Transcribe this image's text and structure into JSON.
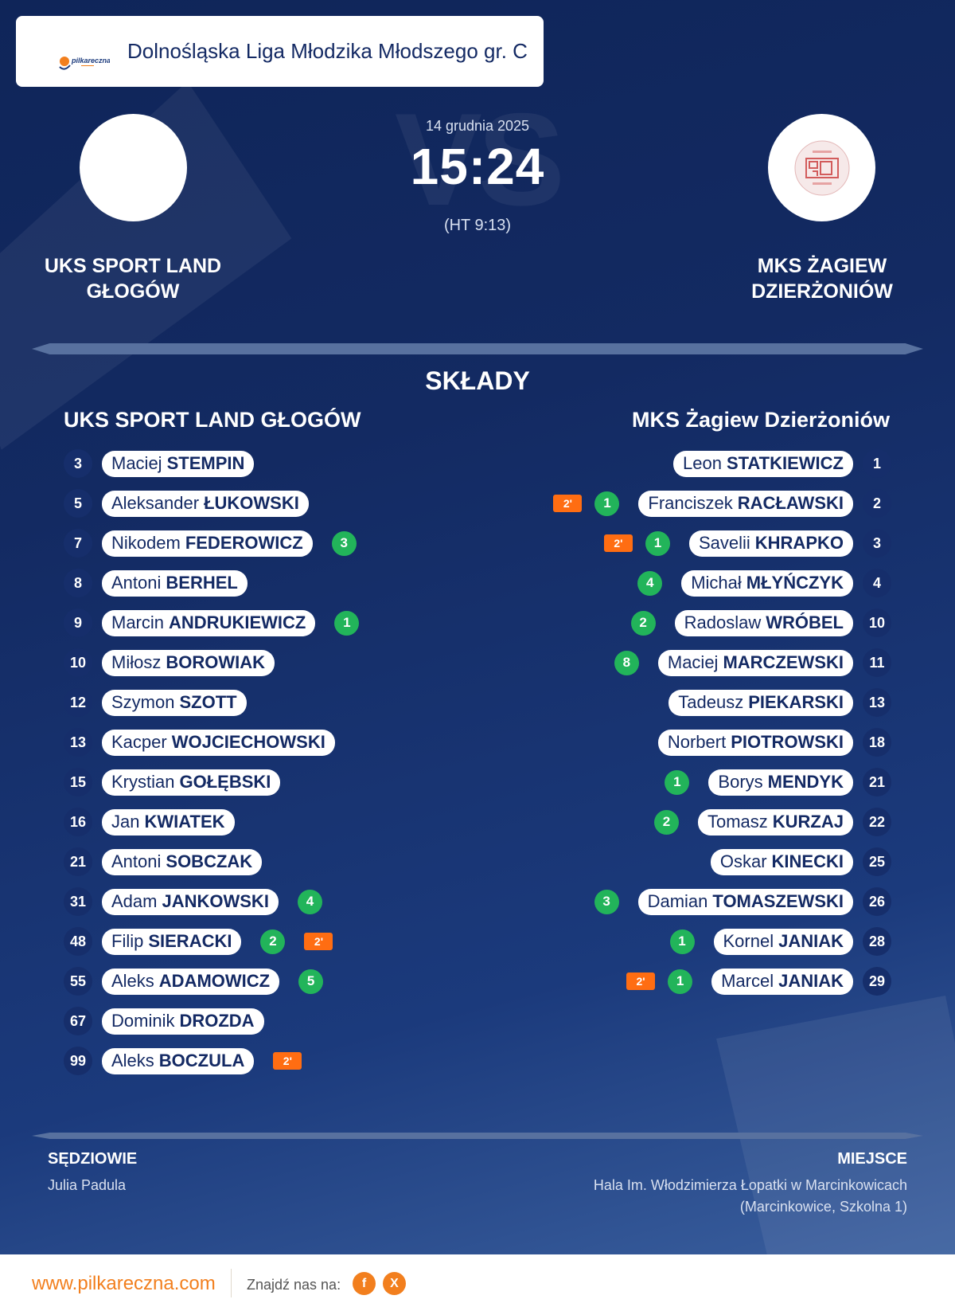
{
  "header": {
    "logo_text": "pilkareczna",
    "league": "Dolnośląska Liga Młodzika Młodszego gr. C"
  },
  "match": {
    "date": "14 grudnia 2025",
    "score": "15:24",
    "halftime": "(HT 9:13)",
    "vs_watermark": "VS",
    "home_team": "UKS SPORT LAND GŁOGÓW",
    "away_team": "MKS ŻAGIEW DZIERŻONIÓW"
  },
  "lineups": {
    "title": "SKŁADY",
    "home_title": "UKS SPORT LAND GŁOGÓW",
    "away_title": "MKS Żagiew Dzierżoniów",
    "home": [
      {
        "num": "3",
        "first": "Maciej",
        "last": "STEMPIN",
        "goals": "",
        "susp": ""
      },
      {
        "num": "5",
        "first": "Aleksander",
        "last": "ŁUKOWSKI",
        "goals": "",
        "susp": ""
      },
      {
        "num": "7",
        "first": "Nikodem",
        "last": "FEDEROWICZ",
        "goals": "3",
        "susp": ""
      },
      {
        "num": "8",
        "first": "Antoni",
        "last": "BERHEL",
        "goals": "",
        "susp": ""
      },
      {
        "num": "9",
        "first": "Marcin",
        "last": "ANDRUKIEWICZ",
        "goals": "1",
        "susp": ""
      },
      {
        "num": "10",
        "first": "Miłosz",
        "last": "BOROWIAK",
        "goals": "",
        "susp": ""
      },
      {
        "num": "12",
        "first": "Szymon",
        "last": "SZOTT",
        "goals": "",
        "susp": ""
      },
      {
        "num": "13",
        "first": "Kacper",
        "last": "WOJCIECHOWSKI",
        "goals": "",
        "susp": ""
      },
      {
        "num": "15",
        "first": "Krystian",
        "last": "GOŁĘBSKI",
        "goals": "",
        "susp": ""
      },
      {
        "num": "16",
        "first": "Jan",
        "last": "KWIATEK",
        "goals": "",
        "susp": ""
      },
      {
        "num": "21",
        "first": "Antoni",
        "last": "SOBCZAK",
        "goals": "",
        "susp": ""
      },
      {
        "num": "31",
        "first": "Adam",
        "last": "JANKOWSKI",
        "goals": "4",
        "susp": ""
      },
      {
        "num": "48",
        "first": "Filip",
        "last": "SIERACKI",
        "goals": "2",
        "susp": "2'"
      },
      {
        "num": "55",
        "first": "Aleks",
        "last": "ADAMOWICZ",
        "goals": "5",
        "susp": ""
      },
      {
        "num": "67",
        "first": "Dominik",
        "last": "DROZDA",
        "goals": "",
        "susp": ""
      },
      {
        "num": "99",
        "first": "Aleks",
        "last": "BOCZULA",
        "goals": "",
        "susp": "2'"
      }
    ],
    "away": [
      {
        "num": "1",
        "first": "Leon",
        "last": "STATKIEWICZ",
        "goals": "",
        "susp": ""
      },
      {
        "num": "2",
        "first": "Franciszek",
        "last": "RACŁAWSKI",
        "goals": "1",
        "susp": "2'"
      },
      {
        "num": "3",
        "first": "Savelii",
        "last": "KHRAPKO",
        "goals": "1",
        "susp": "2'"
      },
      {
        "num": "4",
        "first": "Michał",
        "last": "MŁYŃCZYK",
        "goals": "4",
        "susp": ""
      },
      {
        "num": "10",
        "first": "Radoslaw",
        "last": "WRÓBEL",
        "goals": "2",
        "susp": ""
      },
      {
        "num": "11",
        "first": "Maciej",
        "last": "MARCZEWSKI",
        "goals": "8",
        "susp": ""
      },
      {
        "num": "13",
        "first": "Tadeusz",
        "last": "PIEKARSKI",
        "goals": "",
        "susp": ""
      },
      {
        "num": "18",
        "first": "Norbert",
        "last": "PIOTROWSKI",
        "goals": "",
        "susp": ""
      },
      {
        "num": "21",
        "first": "Borys",
        "last": "MENDYK",
        "goals": "1",
        "susp": ""
      },
      {
        "num": "22",
        "first": "Tomasz",
        "last": "KURZAJ",
        "goals": "2",
        "susp": ""
      },
      {
        "num": "25",
        "first": "Oskar",
        "last": "KINECKI",
        "goals": "",
        "susp": ""
      },
      {
        "num": "26",
        "first": "Damian",
        "last": "TOMASZEWSKI",
        "goals": "3",
        "susp": ""
      },
      {
        "num": "28",
        "first": "Kornel",
        "last": "JANIAK",
        "goals": "1",
        "susp": ""
      },
      {
        "num": "29",
        "first": "Marcel",
        "last": "JANIAK",
        "goals": "1",
        "susp": "2'"
      }
    ]
  },
  "officials": {
    "label": "SĘDZIOWIE",
    "value": "Julia Padula"
  },
  "venue": {
    "label": "MIEJSCE",
    "line1": "Hala Im. Włodzimierza Łopatki w Marcinkowicach",
    "line2": "(Marcinkowice, Szkolna 1)"
  },
  "footer": {
    "url": "www.pilkareczna.com",
    "find_us": "Znajdź nas na:",
    "fb_letter": "f",
    "x_letter": "X"
  },
  "colors": {
    "bg_dark": "#0f2559",
    "accent_orange": "#f27f1e",
    "goal_green": "#22b45a",
    "suspension_orange": "#ff6d12",
    "navy_text": "#142a64"
  },
  "icons": {
    "facebook": "facebook-icon",
    "x": "x-icon"
  }
}
